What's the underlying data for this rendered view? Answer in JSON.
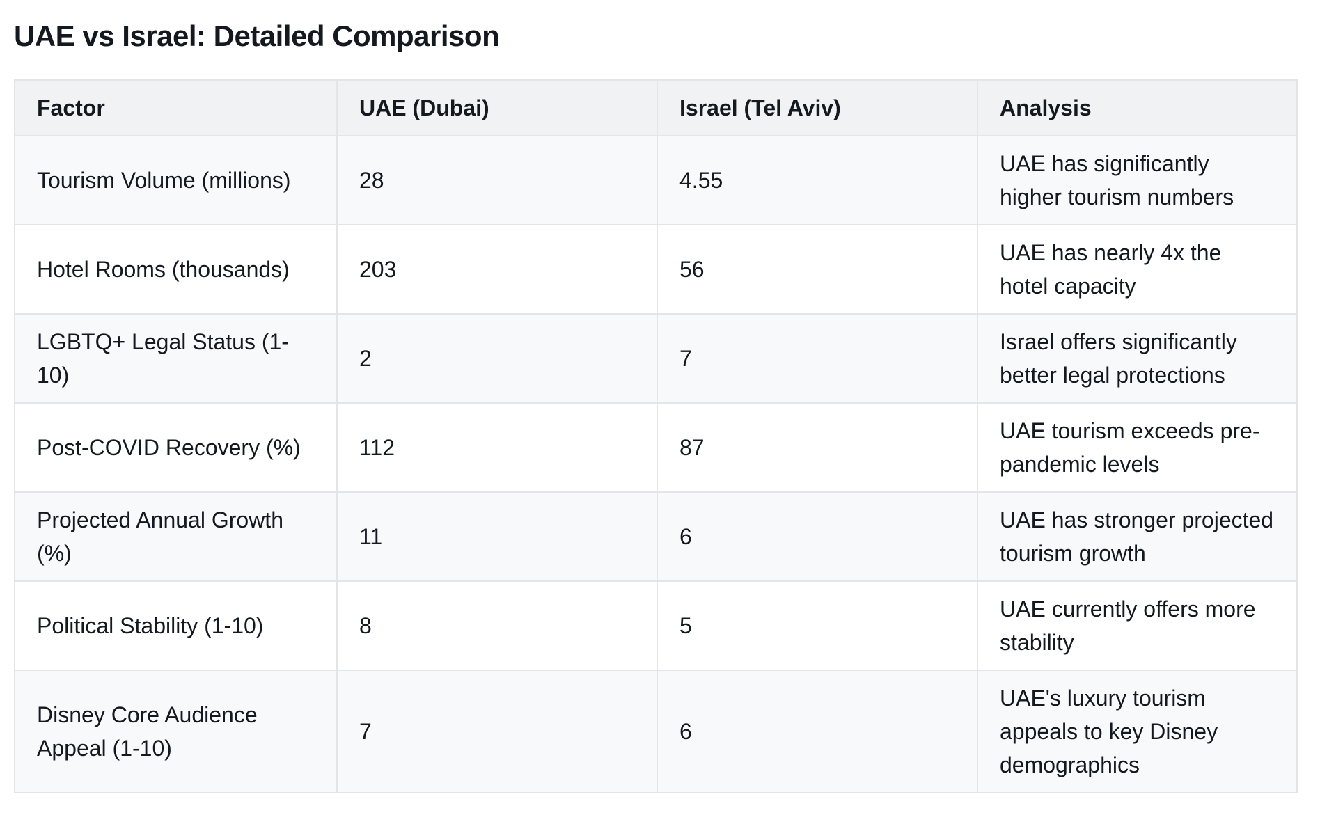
{
  "page": {
    "title": "UAE vs Israel: Detailed Comparison"
  },
  "colors": {
    "text": "#14181f",
    "header_background": "#f1f2f4",
    "alt_row_background": "#f8f9fb",
    "row_background": "#ffffff",
    "border": "#e4e5e9",
    "page_background": "#ffffff"
  },
  "table": {
    "columns": [
      "Factor",
      "UAE (Dubai)",
      "Israel (Tel Aviv)",
      "Analysis"
    ],
    "rows": [
      {
        "factor": "Tourism Volume (millions)",
        "uae": "28",
        "israel": "4.55",
        "analysis": "UAE has significantly higher tourism numbers"
      },
      {
        "factor": "Hotel Rooms (thousands)",
        "uae": "203",
        "israel": "56",
        "analysis": "UAE has nearly 4x the hotel capacity"
      },
      {
        "factor": "LGBTQ+ Legal Status (1-10)",
        "uae": "2",
        "israel": "7",
        "analysis": "Israel offers significantly better legal protections"
      },
      {
        "factor": "Post-COVID Recovery (%)",
        "uae": "112",
        "israel": "87",
        "analysis": "UAE tourism exceeds pre-pandemic levels"
      },
      {
        "factor": "Projected Annual Growth (%)",
        "uae": "11",
        "israel": "6",
        "analysis": "UAE has stronger projected tourism growth"
      },
      {
        "factor": "Political Stability (1-10)",
        "uae": "8",
        "israel": "5",
        "analysis": "UAE currently offers more stability"
      },
      {
        "factor": "Disney Core Audience Appeal (1-10)",
        "uae": "7",
        "israel": "6",
        "analysis": "UAE's luxury tourism appeals to key Disney demographics"
      }
    ]
  }
}
